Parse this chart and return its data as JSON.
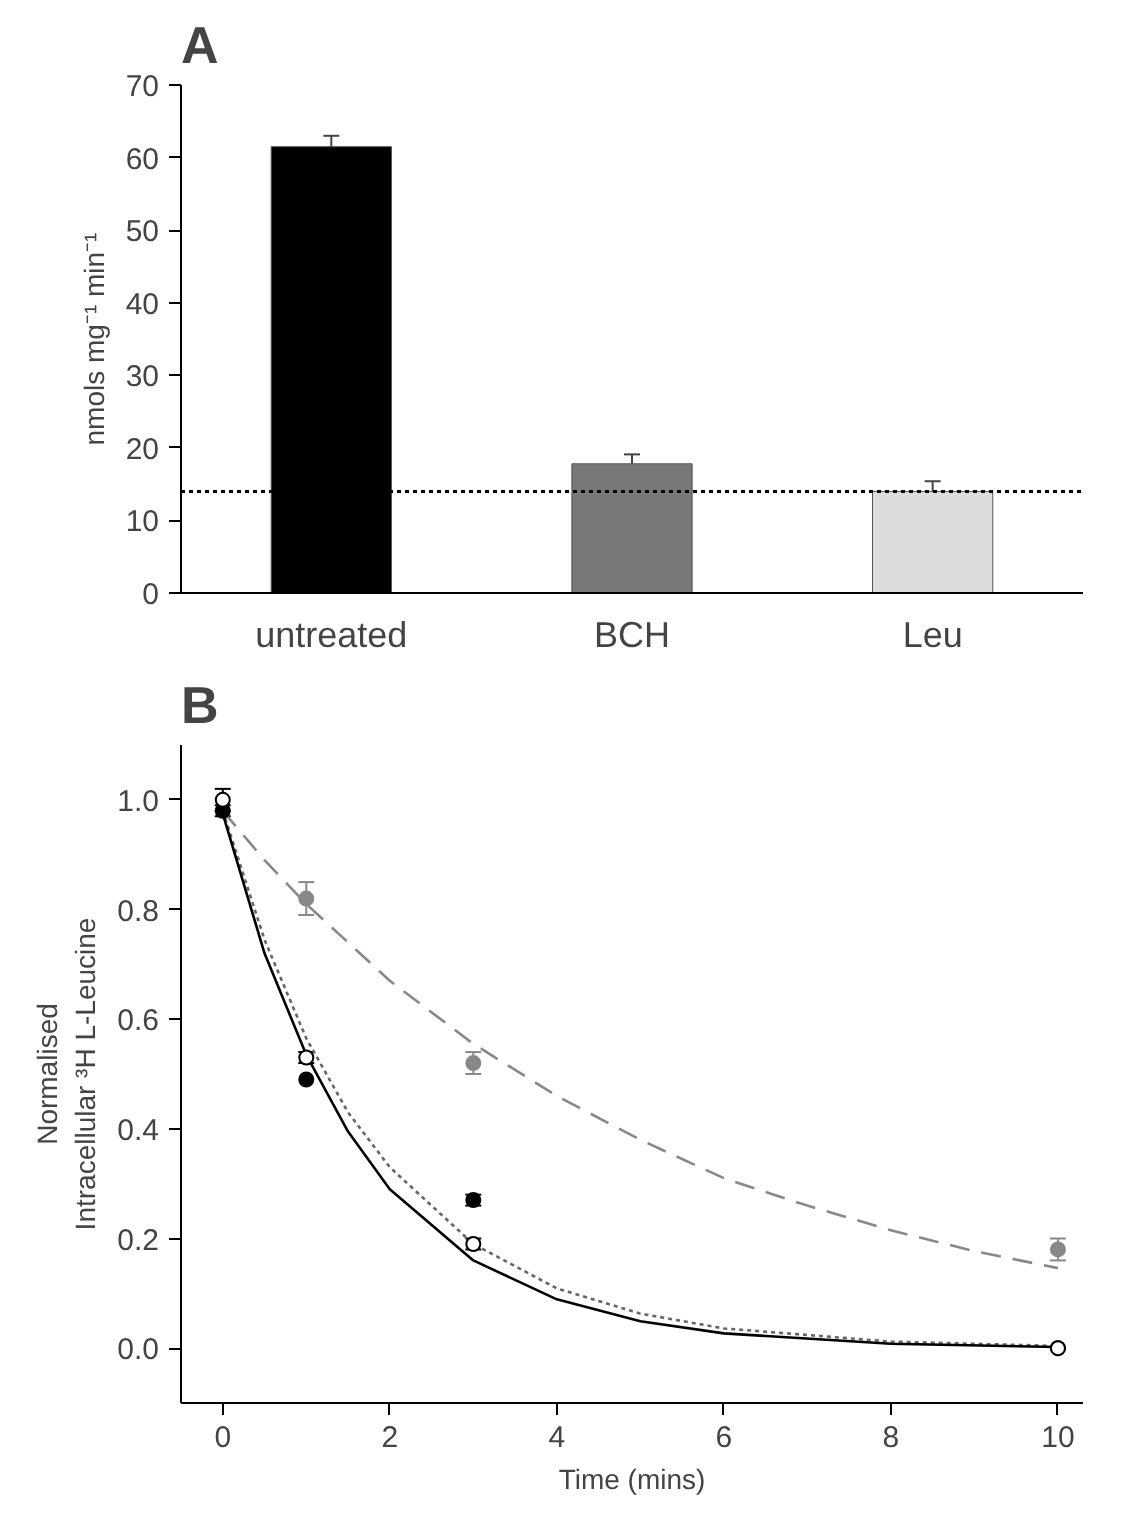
{
  "chart_data": [
    {
      "type": "bar",
      "title": "A",
      "ylabel": "nmols mg⁻¹ min⁻¹",
      "categories": [
        "untreated",
        "BCH",
        "Leu"
      ],
      "values": [
        61.5,
        17.8,
        14.0
      ],
      "colors": [
        "#000000",
        "#787878",
        "#dcdcdc"
      ],
      "errors": [
        1.5,
        1.3,
        1.4
      ],
      "ylim": [
        0,
        70
      ],
      "yticks": [
        0,
        10,
        20,
        30,
        40,
        50,
        60,
        70
      ],
      "ref_lines": [
        {
          "axis": "y",
          "value": 14,
          "line_style": "dotted",
          "color": "#000000"
        }
      ],
      "grid": false
    },
    {
      "type": "scatter",
      "title": "B",
      "xlabel": "Time (mins)",
      "ylabel": "Normalised\nIntracellular ³H L-Leucine",
      "xlim": [
        -0.5,
        10.3
      ],
      "ylim": [
        -0.1,
        1.1
      ],
      "xticks": [
        0,
        2,
        4,
        6,
        8,
        10
      ],
      "yticks": [
        {
          "value": 0,
          "label": "0.0"
        },
        {
          "value": 0.2,
          "label": "0.2"
        },
        {
          "value": 0.4,
          "label": "0.4"
        },
        {
          "value": 0.6,
          "label": "0.6"
        },
        {
          "value": 0.8,
          "label": "0.8"
        },
        {
          "value": 1.0,
          "label": "1.0"
        }
      ],
      "grid": false,
      "series": [
        {
          "type": "line",
          "color": "#888888",
          "line_style": "dashed",
          "x": [
            0,
            0.5,
            1,
            2,
            3,
            4,
            5,
            6,
            7,
            8,
            9,
            10
          ],
          "values": [
            0.98,
            0.89,
            0.81,
            0.67,
            0.555,
            0.46,
            0.38,
            0.31,
            0.26,
            0.215,
            0.177,
            0.146
          ]
        },
        {
          "type": "line",
          "color": "#666666",
          "line_style": "dotted",
          "x": [
            0,
            0.5,
            1,
            1.5,
            2,
            3,
            4,
            5,
            6,
            8,
            10
          ],
          "values": [
            0.98,
            0.745,
            0.565,
            0.43,
            0.33,
            0.19,
            0.109,
            0.063,
            0.036,
            0.012,
            0.004
          ]
        },
        {
          "type": "line",
          "color": "#000000",
          "line_style": "solid",
          "x": [
            0,
            0.5,
            1,
            1.5,
            2,
            3,
            4,
            5,
            6,
            8,
            10
          ],
          "values": [
            0.975,
            0.72,
            0.535,
            0.395,
            0.29,
            0.16,
            0.089,
            0.049,
            0.027,
            0.008,
            0.002
          ]
        },
        {
          "type": "scatter",
          "marker": "circle",
          "color": "#888888",
          "x": [
            1,
            3,
            10
          ],
          "values": [
            0.82,
            0.52,
            0.18
          ],
          "errors": [
            0.03,
            0.02,
            0.02
          ]
        },
        {
          "type": "scatter",
          "marker": "circle",
          "color": "#000000",
          "x": [
            0,
            1,
            3,
            10
          ],
          "values": [
            0.98,
            0.49,
            0.27,
            0.0
          ],
          "errors": [
            0.01,
            null,
            0.01,
            null
          ]
        },
        {
          "type": "scatter",
          "marker": "circle",
          "color": "#ffffff",
          "x": [
            0,
            1,
            3,
            10
          ],
          "values": [
            1.0,
            0.53,
            0.19,
            0.0
          ],
          "errors": [
            0.02,
            0.01,
            0.01,
            null
          ]
        }
      ]
    }
  ]
}
